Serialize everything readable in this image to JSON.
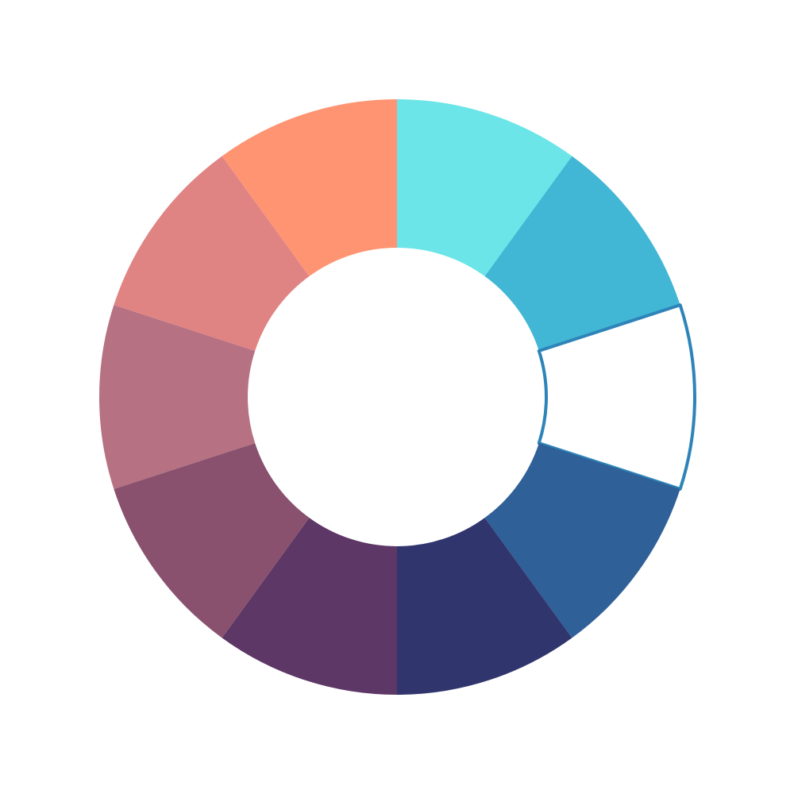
{
  "chart_data": {
    "type": "pie",
    "variant": "donut",
    "title": "",
    "legend": "none",
    "start_angle_deg": 0,
    "direction": "clockwise",
    "slices": [
      {
        "value": 1,
        "color": "#6be5e8"
      },
      {
        "value": 1,
        "color": "#42b7d5"
      },
      {
        "value": 1,
        "color": "#ffffff",
        "note_color": "#2e84b8",
        "torn": true
      },
      {
        "value": 1,
        "color": "#2f6098"
      },
      {
        "value": 1,
        "color": "#31356e"
      },
      {
        "value": 1,
        "color": "#5d3766"
      },
      {
        "value": 1,
        "color": "#89516e"
      },
      {
        "value": 1,
        "color": "#b67182"
      },
      {
        "value": 1,
        "color": "#e08383"
      },
      {
        "value": 1,
        "color": "#ff9473"
      }
    ]
  }
}
